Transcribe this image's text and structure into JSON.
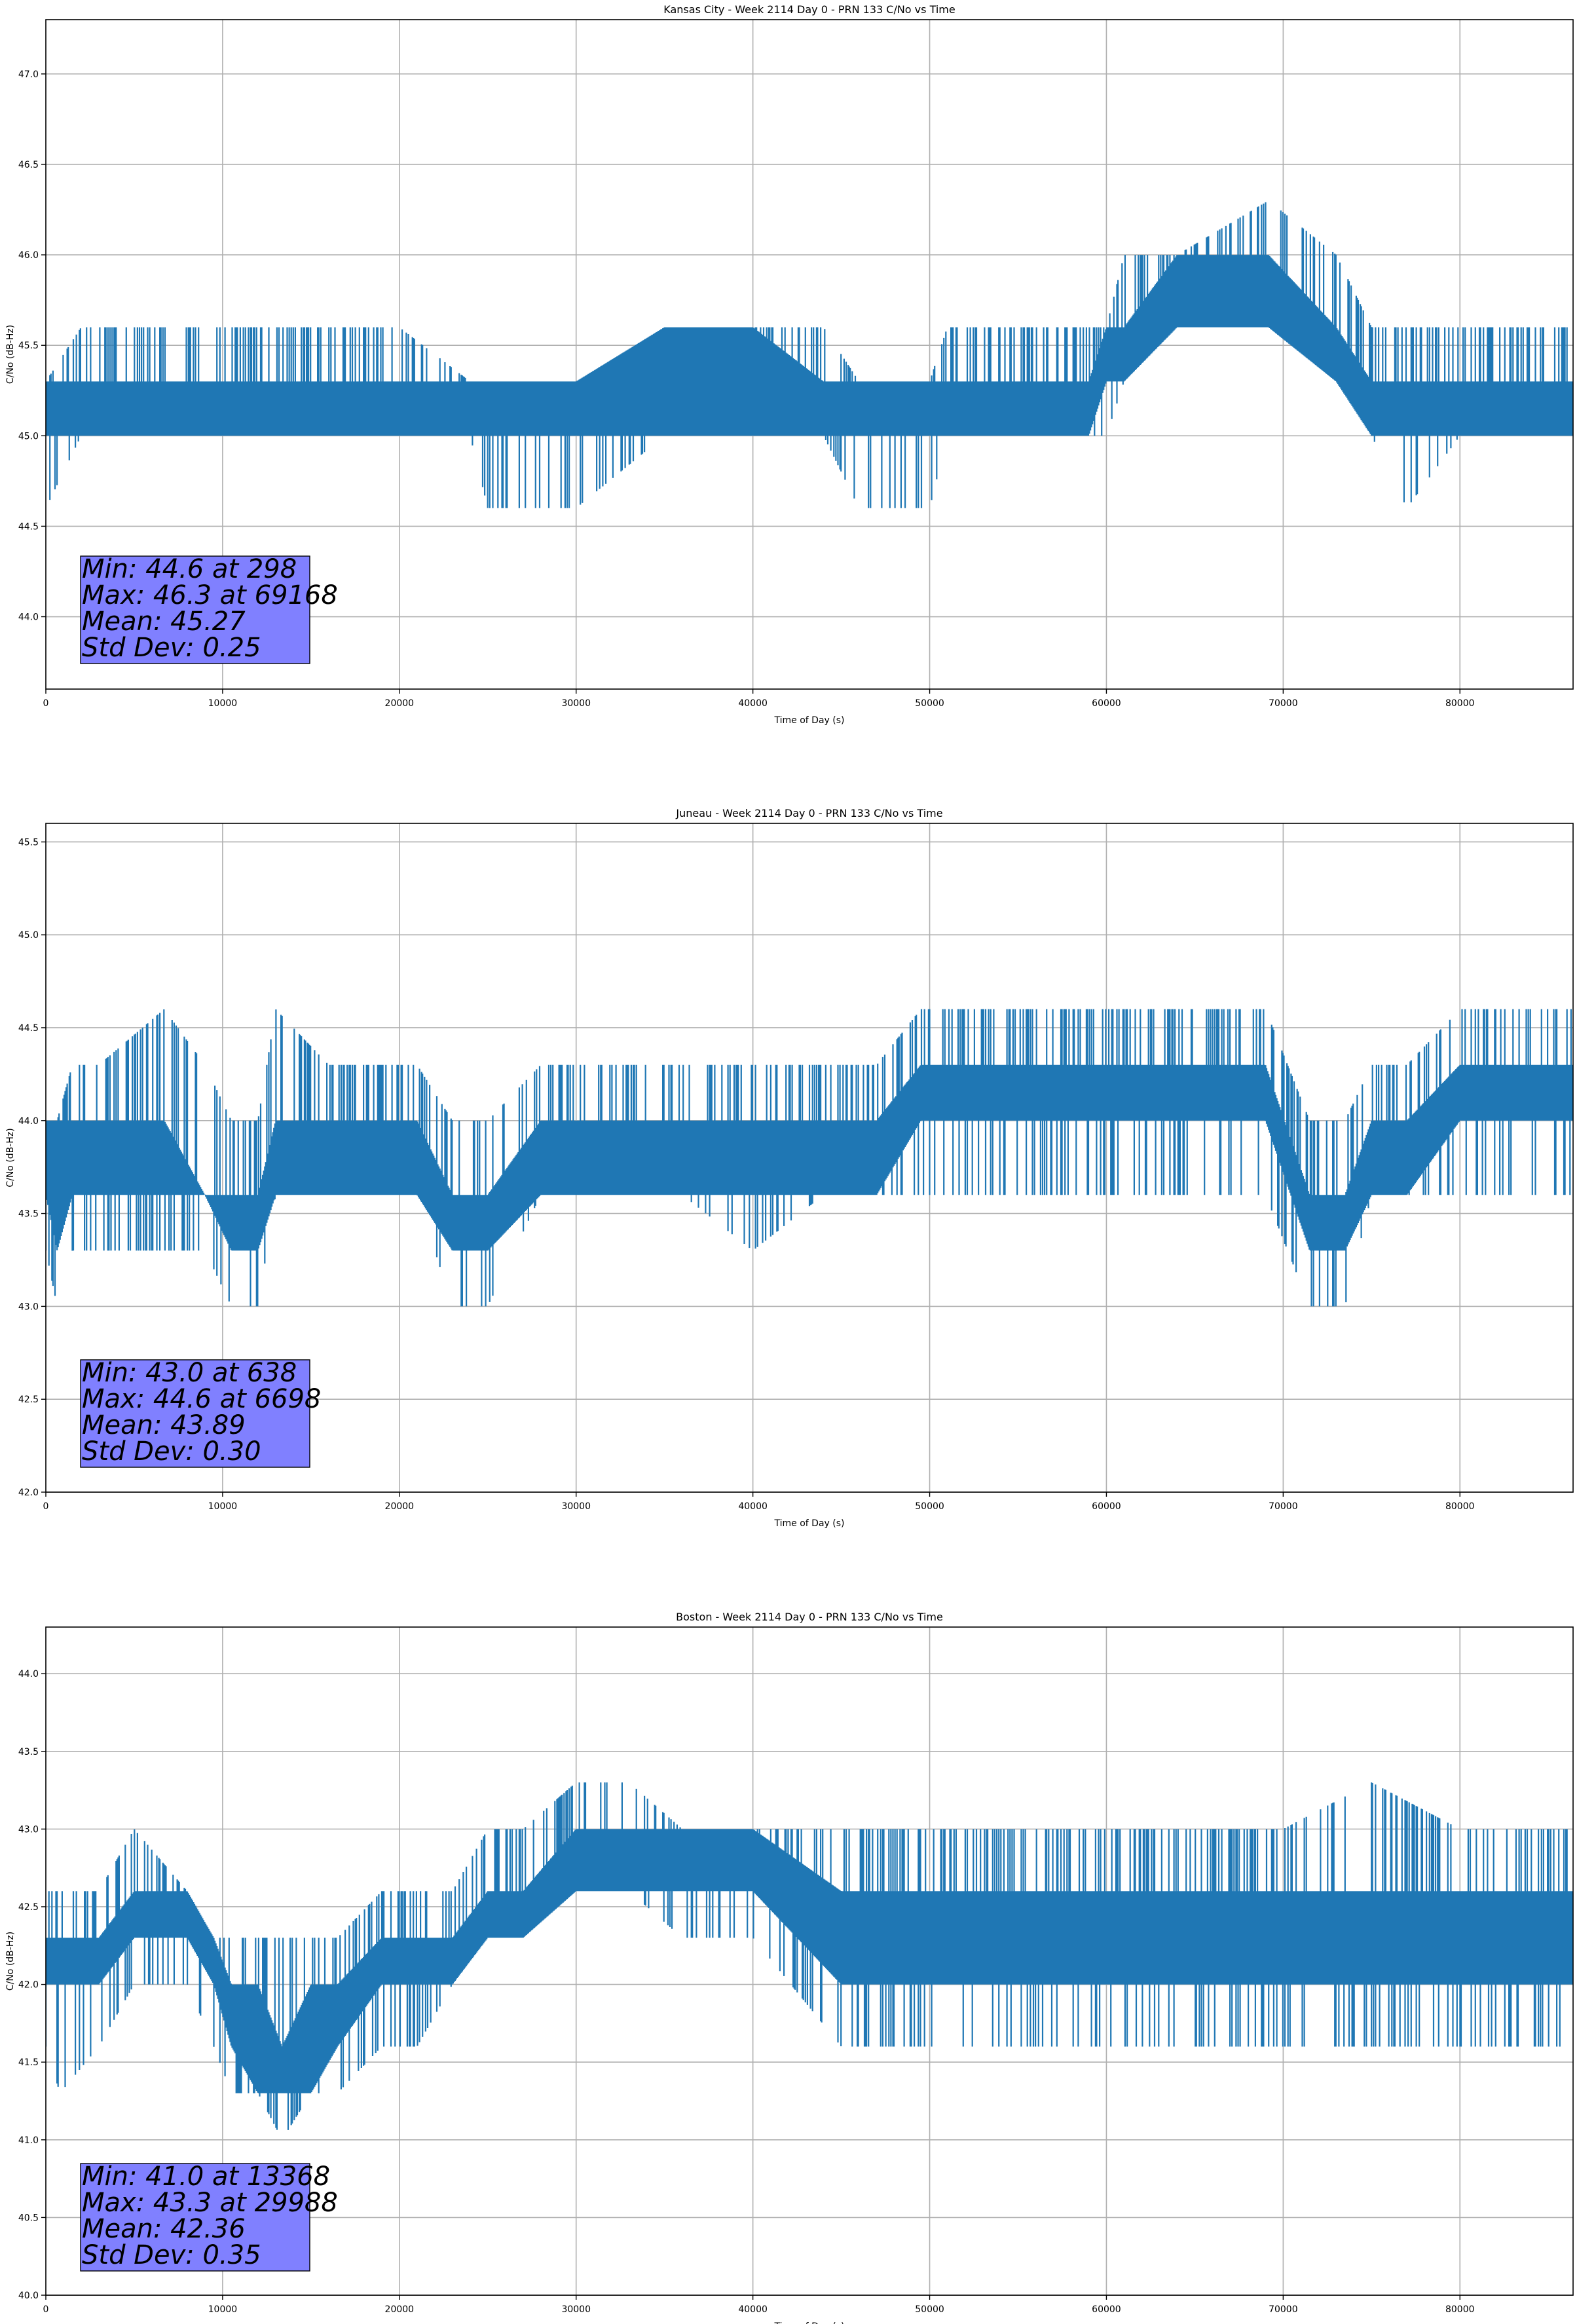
{
  "chart_data": [
    {
      "type": "line",
      "title": "Kansas City - Week 2114 Day 0 - PRN 133 C/No vs Time",
      "xlabel": "Time of Day (s)",
      "ylabel": "C/No (dB-Hz)",
      "xlim": [
        0,
        86400
      ],
      "ylim": [
        43.6,
        47.3
      ],
      "xticks": [
        0,
        10000,
        20000,
        30000,
        40000,
        50000,
        60000,
        70000,
        80000
      ],
      "xtick_labels": [
        "0",
        "10000",
        "20000",
        "30000",
        "40000",
        "50000",
        "60000",
        "70000",
        "80000"
      ],
      "yticks": [
        44.0,
        44.5,
        45.0,
        45.5,
        46.0,
        46.5,
        47.0
      ],
      "ytick_labels": [
        "44.0",
        "44.5",
        "45.0",
        "45.5",
        "46.0",
        "46.5",
        "47.0"
      ],
      "grid": true,
      "line_color": "#1f77b4",
      "stats_box_color": "#8080ff",
      "stats_lines": [
        "Min: 44.6 at 298",
        "Max: 46.3 at 69168",
        "Mean: 45.27",
        "Std Dev: 0.25"
      ],
      "series": [
        {
          "x": [
            0,
            2000,
            6000,
            10000,
            14000,
            20000,
            24000,
            25000,
            30000,
            35000,
            40000,
            44000,
            46000,
            50000,
            51000,
            55000,
            59000,
            60000,
            61000,
            64000,
            69168,
            73000,
            75000,
            77000,
            80000,
            86400
          ],
          "low": [
            44.6,
            45.0,
            45.0,
            45.0,
            45.0,
            45.0,
            45.0,
            44.6,
            44.6,
            45.0,
            45.0,
            45.0,
            44.6,
            44.6,
            45.0,
            45.0,
            45.0,
            45.0,
            45.3,
            45.6,
            45.6,
            45.3,
            45.0,
            44.6,
            45.0,
            45.0
          ],
          "base_low": [
            45.0,
            45.0,
            45.0,
            45.0,
            45.0,
            45.0,
            45.0,
            45.0,
            45.0,
            45.0,
            45.0,
            45.0,
            45.0,
            45.0,
            45.0,
            45.0,
            45.0,
            45.3,
            45.3,
            45.6,
            45.6,
            45.3,
            45.0,
            45.0,
            45.0,
            45.0
          ],
          "base_high": [
            45.3,
            45.3,
            45.3,
            45.3,
            45.3,
            45.3,
            45.3,
            45.3,
            45.3,
            45.6,
            45.6,
            45.3,
            45.3,
            45.3,
            45.3,
            45.3,
            45.3,
            45.6,
            45.6,
            46.0,
            46.0,
            45.6,
            45.3,
            45.3,
            45.3,
            45.3
          ],
          "high": [
            45.3,
            45.6,
            45.6,
            45.6,
            45.6,
            45.6,
            45.3,
            45.3,
            45.3,
            45.6,
            45.6,
            45.6,
            45.3,
            45.3,
            45.6,
            45.6,
            45.6,
            45.6,
            46.0,
            46.0,
            46.3,
            46.0,
            45.6,
            45.6,
            45.6,
            45.6
          ]
        }
      ]
    },
    {
      "type": "line",
      "title": "Juneau - Week 2114 Day 0 - PRN 133 C/No vs Time",
      "xlabel": "Time of Day (s)",
      "ylabel": "C/No (dB-Hz)",
      "xlim": [
        0,
        86400
      ],
      "ylim": [
        42.0,
        45.6
      ],
      "xticks": [
        0,
        10000,
        20000,
        30000,
        40000,
        50000,
        60000,
        70000,
        80000
      ],
      "xtick_labels": [
        "0",
        "10000",
        "20000",
        "30000",
        "40000",
        "50000",
        "60000",
        "70000",
        "80000"
      ],
      "yticks": [
        42.0,
        42.5,
        43.0,
        43.5,
        44.0,
        44.5,
        45.0,
        45.5
      ],
      "ytick_labels": [
        "42.0",
        "42.5",
        "43.0",
        "43.5",
        "44.0",
        "44.5",
        "45.0",
        "45.5"
      ],
      "grid": true,
      "line_color": "#1f77b4",
      "stats_box_color": "#8080ff",
      "stats_lines": [
        "Min: 43.0 at 638",
        "Max: 44.6 at 6698",
        "Mean: 43.89",
        "Std Dev: 0.30"
      ],
      "series": [
        {
          "x": [
            0,
            638,
            1500,
            3000,
            6698,
            9000,
            10500,
            12000,
            13000,
            16000,
            19000,
            21000,
            23000,
            25000,
            28000,
            30000,
            33000,
            36000,
            40000,
            44000,
            47000,
            49500,
            53000,
            57000,
            61000,
            65000,
            69000,
            71500,
            73500,
            75000,
            77000,
            80000,
            86400
          ],
          "low": [
            43.3,
            43.0,
            43.3,
            43.3,
            43.3,
            43.3,
            43.0,
            43.0,
            43.6,
            43.6,
            43.6,
            43.6,
            43.0,
            43.0,
            43.6,
            43.6,
            43.6,
            43.6,
            43.3,
            43.6,
            43.6,
            43.6,
            43.6,
            43.6,
            43.6,
            43.6,
            43.6,
            43.0,
            43.0,
            43.6,
            43.6,
            43.6,
            43.6
          ],
          "base_low": [
            43.6,
            43.3,
            43.6,
            43.6,
            43.6,
            43.6,
            43.3,
            43.3,
            43.6,
            43.6,
            43.6,
            43.6,
            43.3,
            43.3,
            43.6,
            43.6,
            43.6,
            43.6,
            43.6,
            43.6,
            43.6,
            44.0,
            44.0,
            44.0,
            44.0,
            44.0,
            44.0,
            43.3,
            43.3,
            43.6,
            43.6,
            44.0,
            44.0
          ],
          "base_high": [
            44.0,
            44.0,
            44.0,
            44.0,
            44.0,
            43.6,
            43.6,
            43.6,
            44.0,
            44.0,
            44.0,
            44.0,
            43.6,
            43.6,
            44.0,
            44.0,
            44.0,
            44.0,
            44.0,
            44.0,
            44.0,
            44.3,
            44.3,
            44.3,
            44.3,
            44.3,
            44.3,
            43.6,
            43.6,
            44.0,
            44.0,
            44.3,
            44.3
          ],
          "high": [
            44.0,
            44.0,
            44.3,
            44.3,
            44.6,
            44.3,
            44.0,
            44.0,
            44.6,
            44.3,
            44.3,
            44.3,
            44.0,
            44.0,
            44.3,
            44.3,
            44.3,
            44.3,
            44.3,
            44.3,
            44.3,
            44.6,
            44.6,
            44.6,
            44.6,
            44.6,
            44.6,
            44.0,
            44.0,
            44.3,
            44.3,
            44.6,
            44.6
          ]
        }
      ]
    },
    {
      "type": "line",
      "title": "Boston - Week 2114 Day 0 - PRN 133 C/No vs Time",
      "xlabel": "Time of Day (s)",
      "ylabel": "C/No (dB-Hz)",
      "xlim": [
        0,
        86400
      ],
      "ylim": [
        40.0,
        44.3
      ],
      "xticks": [
        0,
        10000,
        20000,
        30000,
        40000,
        50000,
        60000,
        70000,
        80000
      ],
      "xtick_labels": [
        "0",
        "10000",
        "20000",
        "30000",
        "40000",
        "50000",
        "60000",
        "70000",
        "80000"
      ],
      "yticks": [
        40.0,
        40.5,
        41.0,
        41.5,
        42.0,
        42.5,
        43.0,
        43.5,
        44.0
      ],
      "ytick_labels": [
        "40.0",
        "40.5",
        "41.0",
        "41.5",
        "42.0",
        "42.5",
        "43.0",
        "43.5",
        "44.0"
      ],
      "grid": true,
      "line_color": "#1f77b4",
      "stats_box_color": "#8080ff",
      "stats_lines": [
        "Min: 41.0 at 13368",
        "Max: 43.3 at 29988",
        "Mean: 42.36",
        "Std Dev: 0.35"
      ],
      "series": [
        {
          "x": [
            0,
            800,
            3000,
            5000,
            8000,
            9500,
            10500,
            12000,
            13368,
            15000,
            16500,
            19000,
            21000,
            23000,
            25000,
            27000,
            29988,
            33000,
            36000,
            40000,
            45000,
            50000,
            55000,
            60000,
            65000,
            70000,
            75000,
            80000,
            86400
          ],
          "low": [
            41.6,
            41.3,
            41.6,
            42.0,
            42.0,
            41.6,
            41.3,
            41.3,
            41.0,
            41.3,
            41.3,
            41.6,
            41.6,
            42.0,
            42.3,
            42.3,
            42.6,
            42.6,
            42.3,
            42.3,
            41.6,
            41.6,
            41.6,
            41.6,
            41.6,
            41.6,
            41.6,
            41.6,
            41.6
          ],
          "base_low": [
            42.0,
            42.0,
            42.0,
            42.3,
            42.3,
            42.0,
            41.6,
            41.3,
            41.3,
            41.3,
            41.6,
            42.0,
            42.0,
            42.0,
            42.3,
            42.3,
            42.6,
            42.6,
            42.6,
            42.6,
            42.0,
            42.0,
            42.0,
            42.0,
            42.0,
            42.0,
            42.0,
            42.0,
            42.0
          ],
          "base_high": [
            42.3,
            42.3,
            42.3,
            42.6,
            42.6,
            42.3,
            42.0,
            42.0,
            41.6,
            42.0,
            42.0,
            42.3,
            42.3,
            42.3,
            42.6,
            42.6,
            43.0,
            43.0,
            43.0,
            43.0,
            42.6,
            42.6,
            42.6,
            42.6,
            42.6,
            42.6,
            42.6,
            42.6,
            42.6
          ],
          "high": [
            42.6,
            42.6,
            42.6,
            43.0,
            42.6,
            42.3,
            42.3,
            42.3,
            42.3,
            42.3,
            42.3,
            42.6,
            42.6,
            42.6,
            43.0,
            43.0,
            43.3,
            43.3,
            43.0,
            43.0,
            43.0,
            43.0,
            43.0,
            43.0,
            43.0,
            43.0,
            43.3,
            43.0,
            43.0
          ]
        }
      ]
    }
  ]
}
